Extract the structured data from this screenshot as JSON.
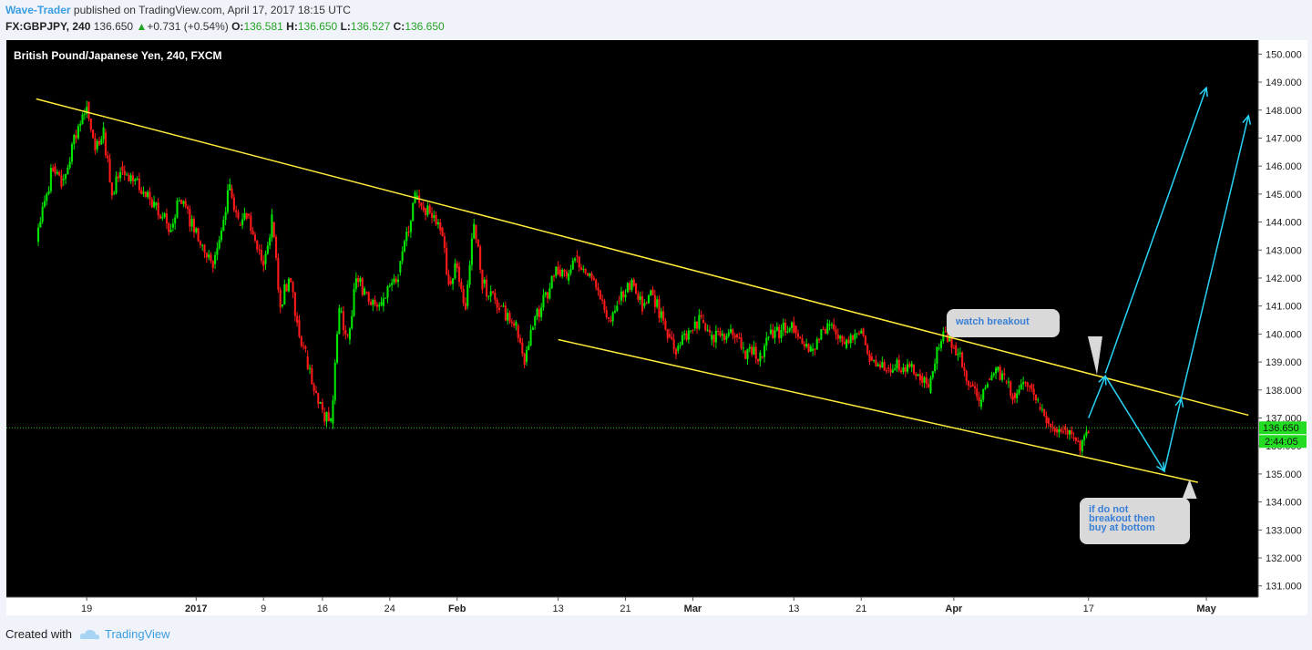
{
  "header": {
    "author": "Wave-Trader",
    "published_text": " published on TradingView.com, April 17, 2017 18:15 UTC",
    "symbol": "FX:GBPJPY, 240",
    "last": "136.650",
    "change": "+0.731 (+0.54%)",
    "o_label": "O:",
    "o_value": "136.581",
    "h_label": "H:",
    "h_value": "136.650",
    "l_label": "L:",
    "l_value": "136.527",
    "c_label": "C:",
    "c_value": "136.650"
  },
  "chart_data": {
    "type": "candlestick",
    "title": "British Pound/Japanese Yen, 240, FXCM",
    "ylim": [
      130.6,
      150.5
    ],
    "y_ticks": [
      "150.000",
      "149.000",
      "148.000",
      "147.000",
      "146.000",
      "145.000",
      "144.000",
      "143.000",
      "142.000",
      "141.000",
      "140.000",
      "139.000",
      "138.000",
      "137.000",
      "136.000",
      "135.000",
      "134.000",
      "133.000",
      "132.000",
      "131.000"
    ],
    "x_ticks": [
      "19",
      "2017",
      "9",
      "16",
      "24",
      "Feb",
      "13",
      "21",
      "Mar",
      "13",
      "21",
      "Apr",
      "17",
      "May"
    ],
    "price_path": [
      [
        "2016-12-13",
        143.3
      ],
      [
        "2016-12-15",
        146.0
      ],
      [
        "2016-12-16",
        145.5
      ],
      [
        "2016-12-19",
        148.3
      ],
      [
        "2016-12-20",
        146.6
      ],
      [
        "2016-12-21",
        147.2
      ],
      [
        "2016-12-22",
        145.0
      ],
      [
        "2016-12-23",
        146.0
      ],
      [
        "2016-12-27",
        144.6
      ],
      [
        "2016-12-29",
        143.8
      ],
      [
        "2016-12-30",
        144.8
      ],
      [
        "2017-01-03",
        142.5
      ],
      [
        "2017-01-05",
        145.2
      ],
      [
        "2017-01-06",
        143.9
      ],
      [
        "2017-01-07",
        144.3
      ],
      [
        "2017-01-09",
        142.5
      ],
      [
        "2017-01-10",
        144.0
      ],
      [
        "2017-01-11",
        141.0
      ],
      [
        "2017-01-12",
        142.0
      ],
      [
        "2017-01-13",
        140.5
      ],
      [
        "2017-01-14",
        139.2
      ],
      [
        "2017-01-16",
        137.2
      ],
      [
        "2017-01-17",
        136.8
      ],
      [
        "2017-01-18",
        140.8
      ],
      [
        "2017-01-19",
        139.8
      ],
      [
        "2017-01-20",
        142.0
      ],
      [
        "2017-01-21",
        141.5
      ],
      [
        "2017-01-23",
        141.0
      ],
      [
        "2017-01-25",
        142.2
      ],
      [
        "2017-01-27",
        144.8
      ],
      [
        "2017-01-28",
        144.5
      ],
      [
        "2017-01-30",
        143.8
      ],
      [
        "2017-01-31",
        141.9
      ],
      [
        "2017-02-01",
        142.4
      ],
      [
        "2017-02-02",
        141.0
      ],
      [
        "2017-02-03",
        143.9
      ],
      [
        "2017-02-04",
        141.8
      ],
      [
        "2017-02-06",
        141.0
      ],
      [
        "2017-02-08",
        140.3
      ],
      [
        "2017-02-09",
        139.0
      ],
      [
        "2017-02-10",
        140.3
      ],
      [
        "2017-02-13",
        142.3
      ],
      [
        "2017-02-14",
        141.9
      ],
      [
        "2017-02-15",
        142.8
      ],
      [
        "2017-02-17",
        142.0
      ],
      [
        "2017-02-19",
        140.5
      ],
      [
        "2017-02-20",
        141.2
      ],
      [
        "2017-02-21",
        141.5
      ],
      [
        "2017-02-22",
        141.8
      ],
      [
        "2017-02-23",
        141.0
      ],
      [
        "2017-02-24",
        141.6
      ],
      [
        "2017-02-26",
        140.0
      ],
      [
        "2017-02-27",
        139.4
      ],
      [
        "2017-03-01",
        140.2
      ],
      [
        "2017-03-02",
        140.5
      ],
      [
        "2017-03-03",
        139.8
      ],
      [
        "2017-03-06",
        140.0
      ],
      [
        "2017-03-07",
        139.4
      ],
      [
        "2017-03-09",
        139.2
      ],
      [
        "2017-03-10",
        140.0
      ],
      [
        "2017-03-13",
        140.3
      ],
      [
        "2017-03-15",
        139.4
      ],
      [
        "2017-03-17",
        140.3
      ],
      [
        "2017-03-19",
        139.5
      ],
      [
        "2017-03-21",
        140.2
      ],
      [
        "2017-03-22",
        139.2
      ],
      [
        "2017-03-24",
        138.8
      ],
      [
        "2017-03-27",
        138.9
      ],
      [
        "2017-03-28",
        138.5
      ],
      [
        "2017-03-29",
        137.9
      ],
      [
        "2017-03-30",
        139.5
      ],
      [
        "2017-03-31",
        140.0
      ],
      [
        "2017-04-01",
        139.6
      ],
      [
        "2017-04-03",
        138.2
      ],
      [
        "2017-04-04",
        137.4
      ],
      [
        "2017-04-05",
        138.4
      ],
      [
        "2017-04-06",
        138.7
      ],
      [
        "2017-04-07",
        138.3
      ],
      [
        "2017-04-08",
        137.9
      ],
      [
        "2017-04-10",
        138.2
      ],
      [
        "2017-04-11",
        137.4
      ],
      [
        "2017-04-12",
        137.0
      ],
      [
        "2017-04-13",
        136.6
      ],
      [
        "2017-04-14",
        136.7
      ],
      [
        "2017-04-15",
        136.3
      ],
      [
        "2017-04-16",
        135.8
      ],
      [
        "2017-04-17",
        136.65
      ]
    ],
    "last_price": "136.650",
    "countdown": "2:44:05",
    "trendlines": [
      {
        "from": [
          "2016-12-13",
          148.4
        ],
        "to": [
          "2017-05-06",
          137.1
        ],
        "color": "#ffeb3b"
      },
      {
        "from": [
          "2017-02-13",
          139.8
        ],
        "to": [
          "2017-04-30",
          134.7
        ],
        "color": "#ffeb3b"
      }
    ],
    "arrows": [
      {
        "points": [
          [
            "2017-04-17",
            137.0
          ],
          [
            "2017-04-19",
            138.5
          ],
          [
            "2017-04-26",
            135.1
          ],
          [
            "2017-04-28",
            137.7
          ],
          [
            "2017-05-06",
            147.8
          ]
        ],
        "color": "#29d3f5"
      },
      {
        "points": [
          [
            "2017-04-19",
            138.6
          ],
          [
            "2017-05-01",
            148.8
          ]
        ],
        "color": "#29d3f5"
      }
    ],
    "annotations": [
      {
        "text": [
          "watch breakout"
        ],
        "anchor": [
          "2017-04-18",
          138.55
        ],
        "color": "#3a7fd5"
      },
      {
        "text": [
          "if do not",
          "breakout then",
          "buy at bottom"
        ],
        "anchor": [
          "2017-04-29",
          134.8
        ],
        "color": "#3a7fd5"
      }
    ],
    "colors": {
      "background": "#000000",
      "up": "#00e600",
      "down": "#ff1a1a",
      "grid": "#4a4a4a",
      "price_line": "#33cc33"
    }
  },
  "footer": {
    "created_with": "Created with",
    "brand": "TradingView"
  }
}
